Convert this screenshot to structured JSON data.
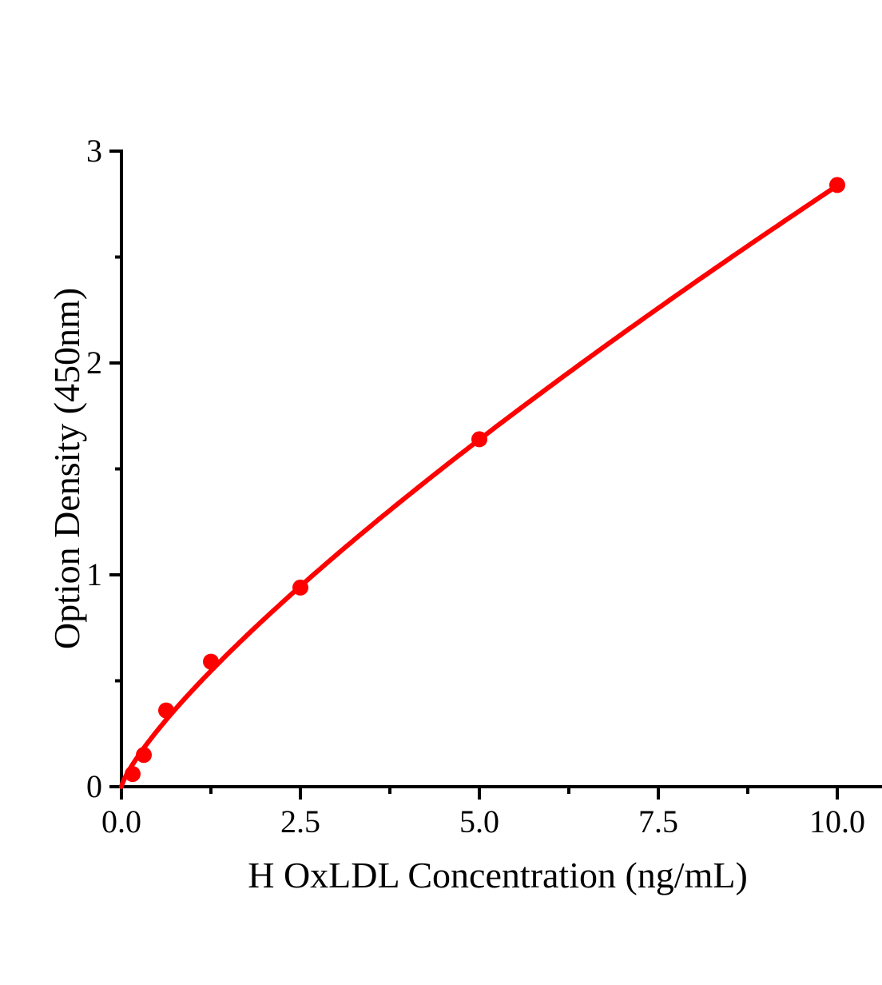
{
  "chart_data": {
    "type": "scatter",
    "title": "",
    "xlabel": "H OxLDL Concentration（ng/mL）",
    "ylabel": "Option Density（450nm）",
    "points": {
      "x": [
        0.156,
        0.313,
        0.625,
        1.25,
        2.5,
        5.0,
        10.0
      ],
      "y": [
        0.06,
        0.15,
        0.36,
        0.59,
        0.94,
        1.64,
        2.84
      ]
    },
    "trendline": {
      "type": "power",
      "a": 0.458,
      "b": 0.792,
      "x_start": 0,
      "x_end": 10
    },
    "xlim": [
      0,
      11
    ],
    "ylim": [
      0,
      3
    ],
    "x_major_ticks": [
      0,
      2.5,
      5,
      7.5,
      10
    ],
    "x_tick_labels": [
      "0.0",
      "2.5",
      "5.0",
      "7.5",
      "10.0"
    ],
    "x_minor_ticks": [
      1.25,
      3.75,
      6.25,
      8.75
    ],
    "y_major_ticks": [
      0,
      1,
      2,
      3
    ],
    "y_tick_labels": [
      "0",
      "1",
      "2",
      "3"
    ],
    "y_minor_ticks": [
      0.5,
      1.5,
      2.5
    ],
    "grid": false,
    "legend": false,
    "marker": {
      "shape": "circle",
      "radius_px": 10
    },
    "colors": {
      "curve": "#ff0000",
      "marker": "#ff0000",
      "axis": "#000000",
      "background": "#ffffff"
    }
  }
}
